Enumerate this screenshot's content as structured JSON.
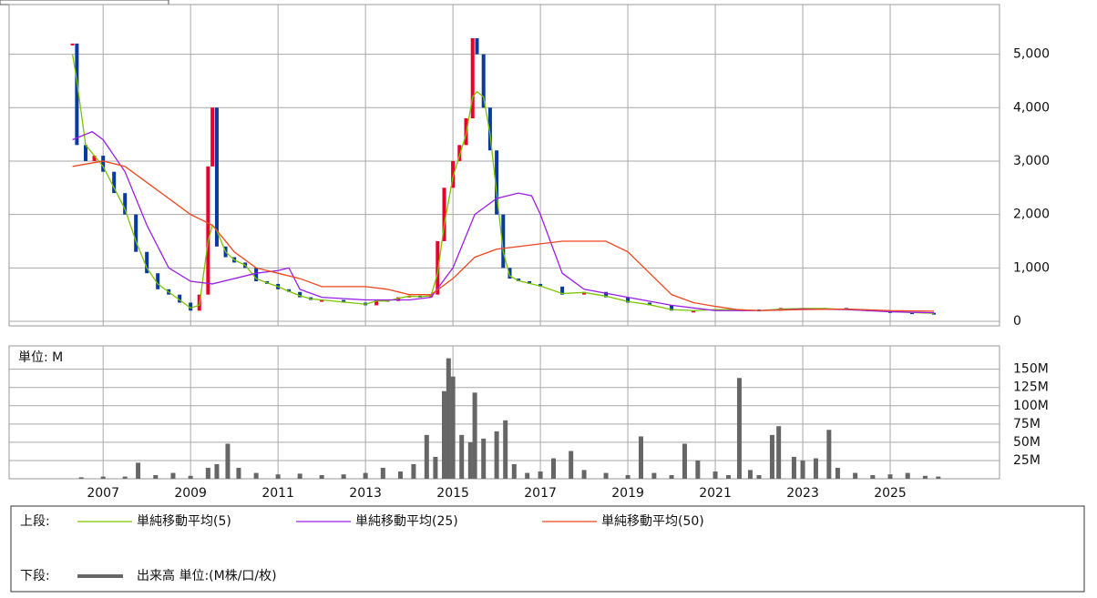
{
  "chart_data": [
    {
      "type": "candlestick",
      "legend_prefix": "上段:",
      "x": [
        2006.3,
        2006.4,
        2006.6,
        2006.8,
        2007.0,
        2007.25,
        2007.5,
        2007.75,
        2008.0,
        2008.25,
        2008.5,
        2008.75,
        2009.0,
        2009.2,
        2009.4,
        2009.5,
        2009.6,
        2009.8,
        2010.0,
        2010.25,
        2010.5,
        2010.75,
        2011.0,
        2011.25,
        2011.5,
        2011.75,
        2012.0,
        2012.5,
        2013.0,
        2013.25,
        2013.5,
        2013.75,
        2014.0,
        2014.25,
        2014.5,
        2014.65,
        2014.8,
        2015.0,
        2015.15,
        2015.3,
        2015.45,
        2015.55,
        2015.7,
        2015.85,
        2016.0,
        2016.15,
        2016.3,
        2016.5,
        2016.75,
        2017.0,
        2017.5,
        2018.0,
        2018.5,
        2019.0,
        2019.5,
        2020.0,
        2020.5,
        2021.0,
        2021.5,
        2022.0,
        2022.5,
        2023.0,
        2023.5,
        2024.0,
        2024.5,
        2025.0,
        2025.5,
        2026.0
      ],
      "close": [
        5200,
        3300,
        3000,
        3100,
        2800,
        2400,
        2000,
        1300,
        900,
        600,
        500,
        350,
        200,
        500,
        2900,
        4000,
        1400,
        1200,
        1100,
        1000,
        750,
        700,
        600,
        550,
        450,
        400,
        400,
        350,
        300,
        400,
        380,
        450,
        480,
        450,
        500,
        1500,
        2500,
        3000,
        3300,
        3800,
        5300,
        5000,
        4000,
        3200,
        2000,
        1000,
        800,
        750,
        700,
        650,
        500,
        550,
        450,
        350,
        300,
        200,
        200,
        230,
        220,
        200,
        250,
        250,
        250,
        220,
        190,
        170,
        160,
        140
      ],
      "up_color": "#e8002a",
      "down_color": "#0a3a9e",
      "series": [
        {
          "name": "単純移動平均(5)",
          "color": "#7cc400",
          "values": [
            5000,
            4500,
            3300,
            3100,
            2900,
            2500,
            2100,
            1500,
            1000,
            700,
            550,
            400,
            250,
            300,
            1500,
            1800,
            1700,
            1300,
            1150,
            1050,
            800,
            720,
            650,
            560,
            480,
            420,
            400,
            360,
            320,
            380,
            380,
            430,
            470,
            460,
            480,
            900,
            1800,
            2700,
            3100,
            3500,
            4200,
            4300,
            4200,
            3500,
            2400,
            1300,
            850,
            760,
            710,
            660,
            520,
            540,
            470,
            370,
            310,
            220,
            200,
            220,
            220,
            200,
            230,
            240,
            240,
            220,
            200,
            180,
            165,
            150
          ]
        },
        {
          "name": "単純移動平均(25)",
          "color": "#9a1ee8",
          "x": [
            2006.3,
            2006.75,
            2007.0,
            2007.5,
            2008.0,
            2008.5,
            2009.0,
            2009.5,
            2010.0,
            2010.5,
            2011.0,
            2011.25,
            2011.5,
            2012.0,
            2013.0,
            2014.0,
            2014.5,
            2015.0,
            2015.5,
            2016.0,
            2016.5,
            2016.8,
            2017.0,
            2017.5,
            2018.0,
            2019.0,
            2020.0,
            2021.0,
            2022.0,
            2023.0,
            2024.0,
            2025.0,
            2026.0
          ],
          "values": [
            3400,
            3550,
            3400,
            2800,
            1800,
            1000,
            750,
            700,
            800,
            900,
            950,
            1000,
            600,
            450,
            400,
            400,
            450,
            1000,
            2000,
            2300,
            2400,
            2350,
            2000,
            900,
            600,
            450,
            300,
            200,
            200,
            230,
            220,
            180,
            160
          ]
        },
        {
          "name": "単純移動平均(50)",
          "color": "#f0461e",
          "x": [
            2006.3,
            2007.0,
            2007.5,
            2008.0,
            2008.5,
            2009.0,
            2009.5,
            2010.0,
            2010.5,
            2011.0,
            2011.5,
            2012.0,
            2013.0,
            2013.5,
            2014.0,
            2014.5,
            2015.0,
            2015.5,
            2016.0,
            2016.5,
            2017.0,
            2017.5,
            2018.0,
            2018.5,
            2019.0,
            2019.5,
            2020.0,
            2020.5,
            2021.0,
            2021.5,
            2022.0,
            2023.0,
            2024.0,
            2025.0,
            2026.0
          ],
          "values": [
            2900,
            3000,
            2900,
            2600,
            2300,
            2000,
            1800,
            1300,
            1000,
            900,
            800,
            650,
            650,
            600,
            500,
            500,
            800,
            1200,
            1350,
            1400,
            1450,
            1500,
            1500,
            1500,
            1300,
            900,
            500,
            350,
            280,
            220,
            200,
            220,
            230,
            200,
            190
          ]
        }
      ],
      "xlim": [
        2004.85,
        2027.5
      ],
      "xticks": [
        2007,
        2009,
        2011,
        2013,
        2015,
        2017,
        2019,
        2021,
        2023,
        2025
      ],
      "ylim": [
        -85,
        5930
      ],
      "yticks": [
        {
          "value": 0,
          "label": "0"
        },
        {
          "value": 1000,
          "label": "1,000"
        },
        {
          "value": 2000,
          "label": "2,000"
        },
        {
          "value": 3000,
          "label": "3,000"
        },
        {
          "value": 4000,
          "label": "4,000"
        },
        {
          "value": 5000,
          "label": "5,000"
        }
      ],
      "grid": true
    },
    {
      "type": "bar",
      "unit_label": "単位: M",
      "legend_prefix": "下段:",
      "series_name": "出来高 単位:(M株/口/枚)",
      "color": "#666666",
      "x": [
        2006.5,
        2007.0,
        2007.5,
        2007.8,
        2008.2,
        2008.6,
        2009.0,
        2009.4,
        2009.6,
        2009.85,
        2010.1,
        2010.5,
        2011.0,
        2011.5,
        2012.0,
        2012.5,
        2013.0,
        2013.4,
        2013.8,
        2014.1,
        2014.4,
        2014.6,
        2014.8,
        2014.9,
        2015.0,
        2015.2,
        2015.4,
        2015.5,
        2015.7,
        2016.0,
        2016.2,
        2016.4,
        2016.7,
        2017.0,
        2017.3,
        2017.7,
        2018.0,
        2018.5,
        2019.0,
        2019.3,
        2019.6,
        2020.0,
        2020.3,
        2020.6,
        2021.0,
        2021.3,
        2021.55,
        2021.8,
        2022.0,
        2022.3,
        2022.45,
        2022.8,
        2023.0,
        2023.3,
        2023.6,
        2023.8,
        2024.2,
        2024.6,
        2025.0,
        2025.4,
        2025.8,
        2026.1
      ],
      "values": [
        2,
        3,
        3,
        22,
        5,
        8,
        4,
        15,
        20,
        48,
        15,
        8,
        6,
        7,
        5,
        6,
        8,
        15,
        10,
        20,
        60,
        30,
        120,
        165,
        140,
        60,
        50,
        118,
        55,
        65,
        80,
        20,
        8,
        10,
        28,
        38,
        12,
        8,
        5,
        58,
        8,
        5,
        48,
        25,
        10,
        5,
        138,
        12,
        5,
        60,
        72,
        30,
        25,
        28,
        67,
        15,
        8,
        5,
        6,
        8,
        4,
        3
      ],
      "xlim": [
        2004.85,
        2027.5
      ],
      "xticks": [
        2007,
        2009,
        2011,
        2013,
        2015,
        2017,
        2019,
        2021,
        2023,
        2025
      ],
      "ylim": [
        0,
        182
      ],
      "yticks": [
        {
          "value": 25,
          "label": "25M"
        },
        {
          "value": 50,
          "label": "50M"
        },
        {
          "value": 75,
          "label": "75M"
        },
        {
          "value": 100,
          "label": "100M"
        },
        {
          "value": 125,
          "label": "125M"
        },
        {
          "value": 150,
          "label": "150M"
        }
      ],
      "grid": true
    }
  ]
}
